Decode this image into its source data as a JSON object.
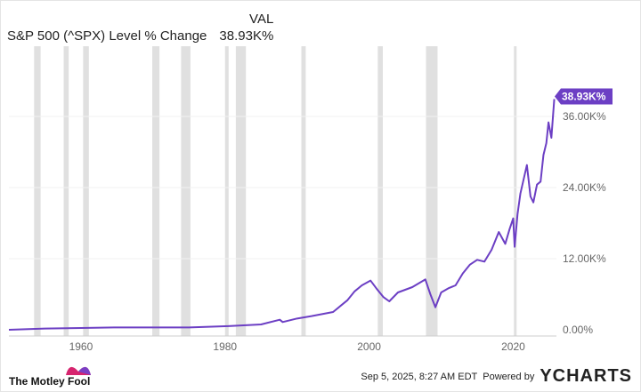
{
  "header": {
    "col_label": "VAL",
    "series_name": "S&P 500 (^SPX) Level % Change",
    "series_value": "38.93K%"
  },
  "footer": {
    "brand": "The Motley Fool",
    "timestamp": "Sep 5, 2025, 8:27 AM EDT",
    "powered": "Powered by",
    "ycharts": "YCHARTS"
  },
  "colors": {
    "line": "#6c3fc4",
    "band": "#e0e0e0"
  },
  "chart_data": {
    "type": "line",
    "title": "S&P 500 (^SPX) Level % Change",
    "xlabel": "",
    "ylabel": "",
    "xlim": [
      1950,
      2026
    ],
    "ylim": [
      0,
      40
    ],
    "x_ticks": [
      1960,
      1980,
      2000,
      2020
    ],
    "y_ticks": [
      {
        "v": 0,
        "label": "0.00%"
      },
      {
        "v": 12,
        "label": "12.00K%"
      },
      {
        "v": 24,
        "label": "24.00K%"
      },
      {
        "v": 36,
        "label": "36.00K%"
      }
    ],
    "end_label": "38.93K%",
    "recessions": [
      [
        1953.5,
        1954.4
      ],
      [
        1957.6,
        1958.3
      ],
      [
        1960.3,
        1961.1
      ],
      [
        1969.9,
        1970.9
      ],
      [
        1973.9,
        1975.2
      ],
      [
        1980.0,
        1980.5
      ],
      [
        1981.5,
        1982.9
      ],
      [
        1990.6,
        1991.2
      ],
      [
        2001.2,
        2001.9
      ],
      [
        2007.9,
        2009.5
      ],
      [
        2020.1,
        2020.4
      ]
    ],
    "series": [
      {
        "name": "S&P 500 (^SPX) Level % Change",
        "unit": "K%",
        "x": [
          1950,
          1955,
          1960,
          1965,
          1970,
          1975,
          1980,
          1985,
          1987.6,
          1988,
          1990,
          1992,
          1995,
          1997,
          1998,
          1999,
          2000.2,
          2001,
          2002,
          2002.8,
          2004,
          2006,
          2007.8,
          2008.5,
          2009.2,
          2010,
          2011,
          2012,
          2013,
          2014,
          2015,
          2016,
          2017,
          2018,
          2018.9,
          2019.5,
          2020,
          2020.2,
          2020.6,
          2021,
          2021.9,
          2022.4,
          2022.8,
          2023.3,
          2023.8,
          2024.2,
          2024.6,
          2024.9,
          2025.3,
          2025.7
        ],
        "values": [
          0,
          0.2,
          0.3,
          0.4,
          0.4,
          0.4,
          0.6,
          0.9,
          1.7,
          1.3,
          1.9,
          2.3,
          3.0,
          5.0,
          6.5,
          7.5,
          8.3,
          7.0,
          5.5,
          4.8,
          6.3,
          7.2,
          8.5,
          6.0,
          3.8,
          6.3,
          7.0,
          7.5,
          9.5,
          11.0,
          11.8,
          11.5,
          13.5,
          16.5,
          14.5,
          17.0,
          18.8,
          14.0,
          19.5,
          23.0,
          27.8,
          22.5,
          21.5,
          24.5,
          25.0,
          29.5,
          31.5,
          35.0,
          32.4,
          38.93
        ]
      }
    ]
  }
}
